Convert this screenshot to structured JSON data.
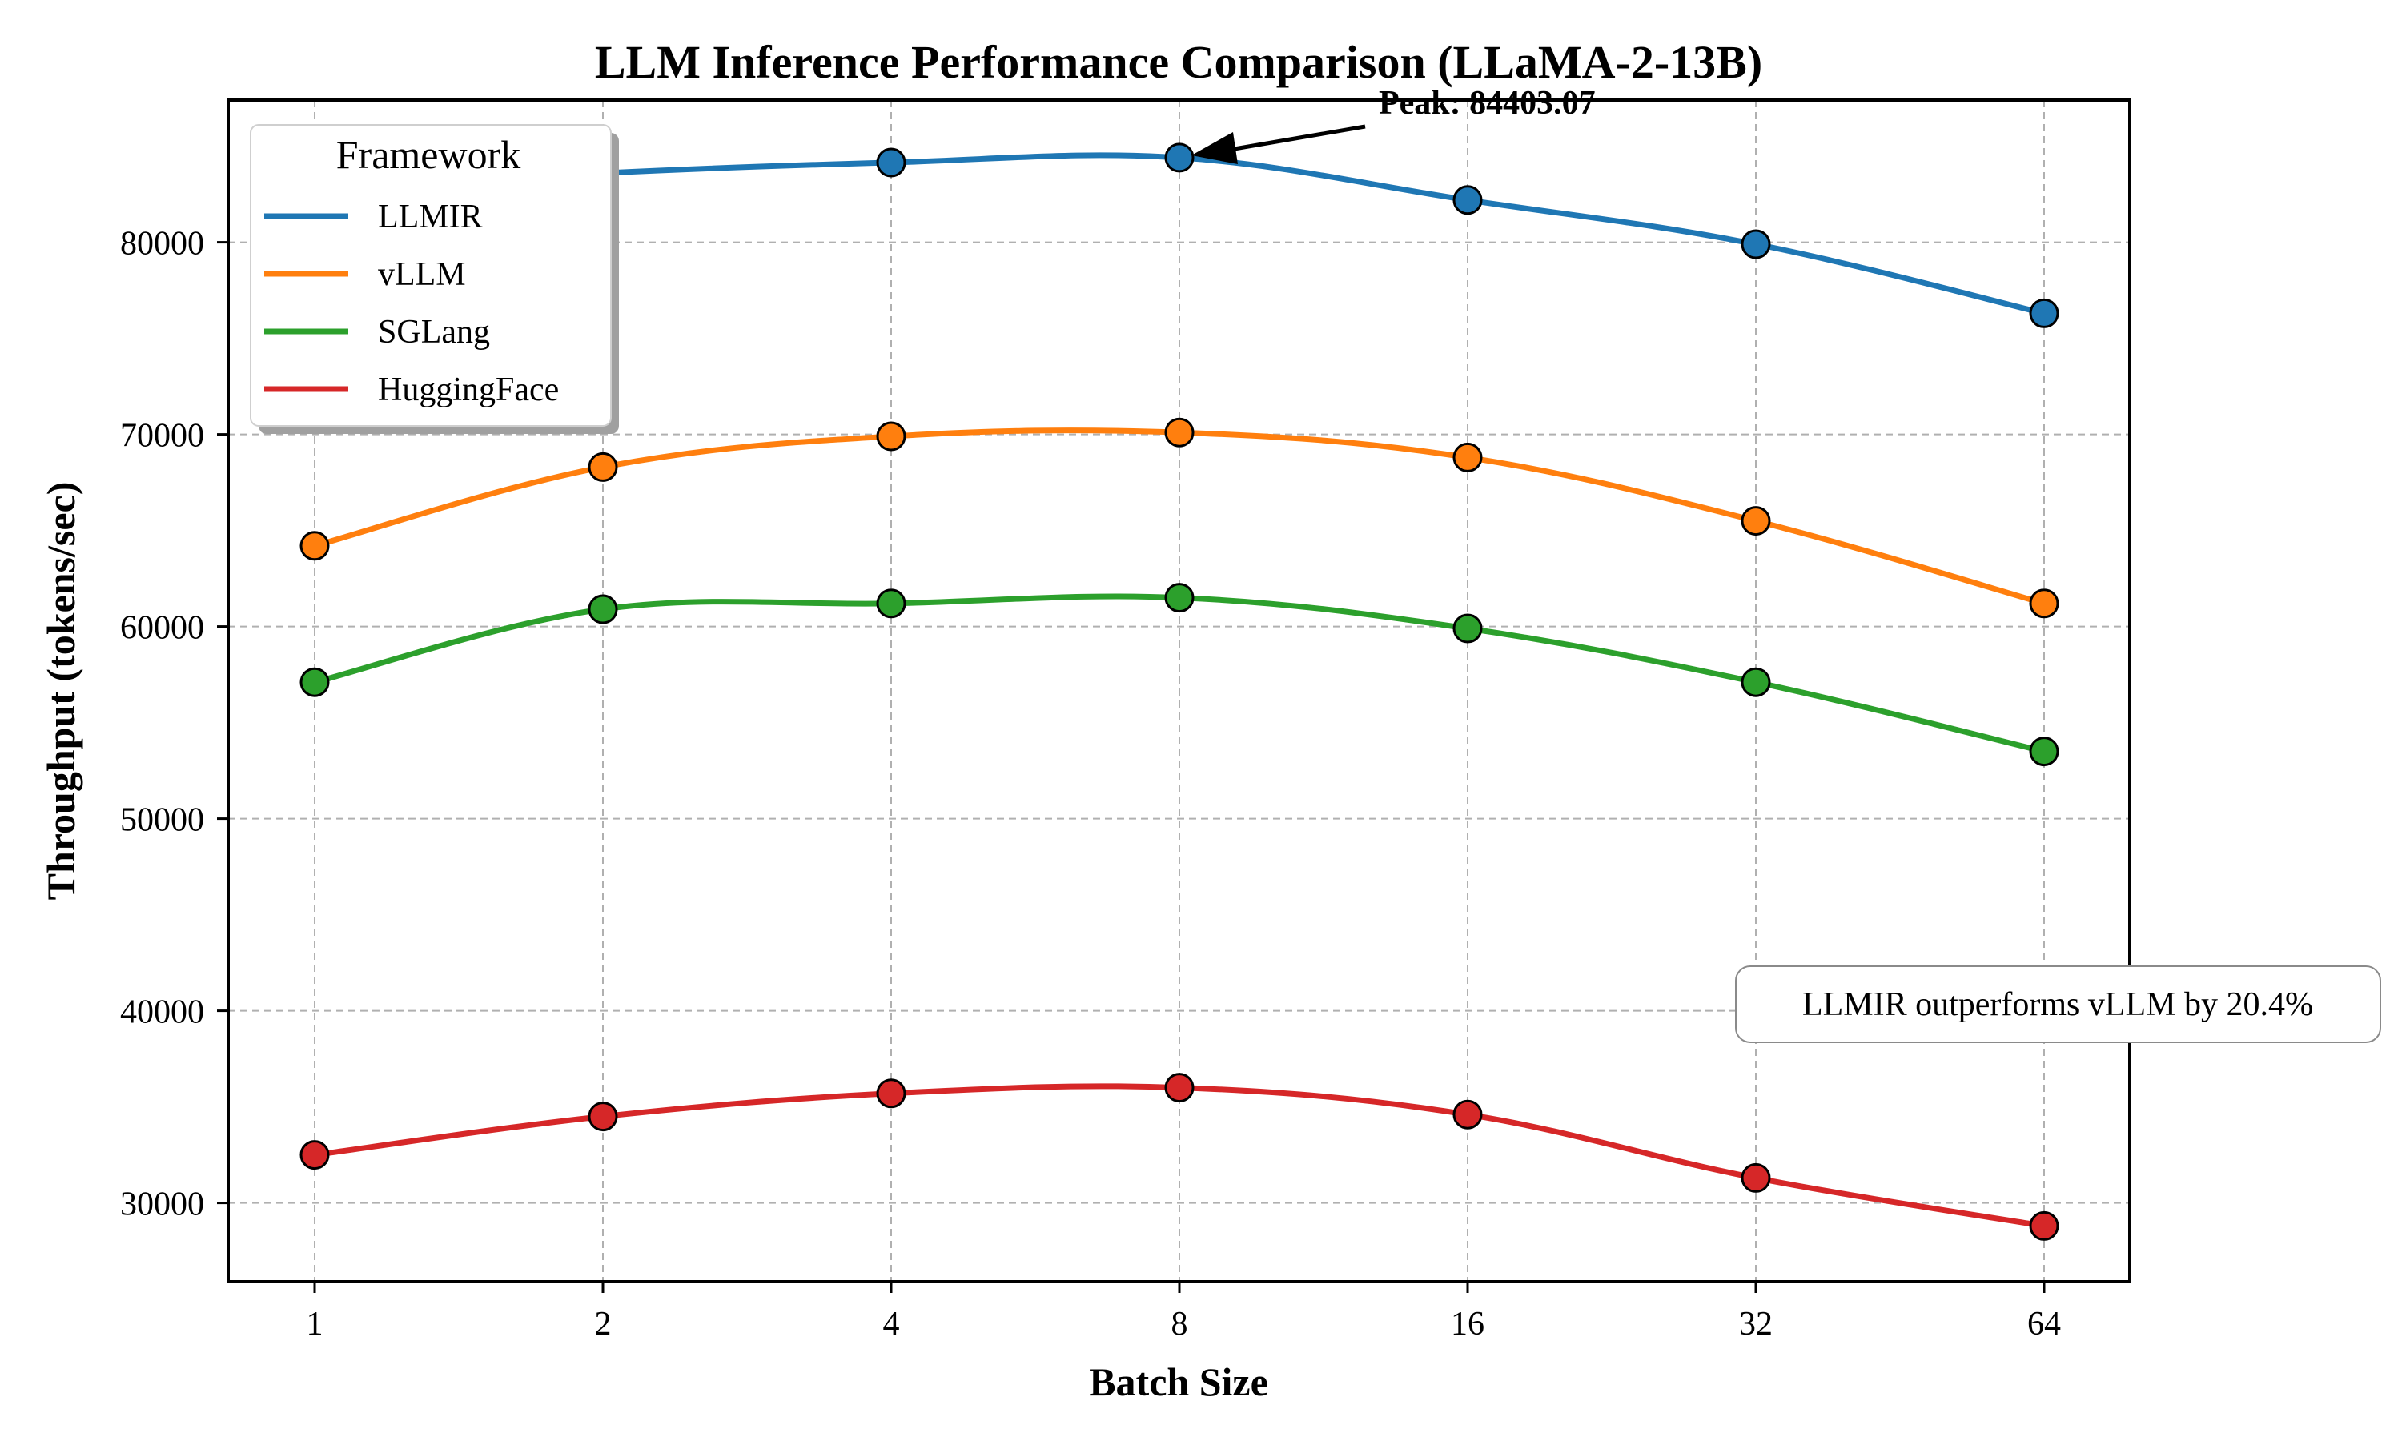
{
  "chart_data": {
    "type": "line",
    "title": "LLM Inference Performance Comparison (LLaMA-2-13B)",
    "xlabel": "Batch Size",
    "ylabel": "Throughput (tokens/sec)",
    "x_scale": "log2",
    "x": [
      1,
      2,
      4,
      8,
      16,
      32,
      64
    ],
    "x_tick_labels": [
      "1",
      "2",
      "4",
      "8",
      "16",
      "32",
      "64"
    ],
    "y_ticks": [
      30000,
      40000,
      50000,
      60000,
      70000,
      80000
    ],
    "y_tick_labels": [
      "30000",
      "40000",
      "50000",
      "60000",
      "70000",
      "80000"
    ],
    "ylim": [
      25900,
      87400
    ],
    "grid": true,
    "legend": {
      "title": "Framework",
      "placement": "top-left"
    },
    "series": [
      {
        "name": "LLMIR",
        "color": "#1f77b4",
        "values": [
          82700,
          83600,
          84150,
          84403.07,
          82200,
          79900,
          76300
        ]
      },
      {
        "name": "vLLM",
        "color": "#ff7f0e",
        "values": [
          64200,
          68300,
          69900,
          70100,
          68800,
          65500,
          61200
        ]
      },
      {
        "name": "SGLang",
        "color": "#2ca02c",
        "values": [
          57100,
          60900,
          61200,
          61500,
          59900,
          57100,
          53500
        ]
      },
      {
        "name": "HuggingFace",
        "color": "#d62728",
        "values": [
          32500,
          34500,
          35700,
          36000,
          34600,
          31300,
          28800
        ]
      }
    ],
    "annotations": [
      {
        "text": "Peak: 84403.07",
        "series": "LLMIR",
        "x": 8,
        "y": 84403.07
      }
    ],
    "note_box": {
      "text": "LLMIR outperforms vLLM by 20.4%"
    }
  }
}
